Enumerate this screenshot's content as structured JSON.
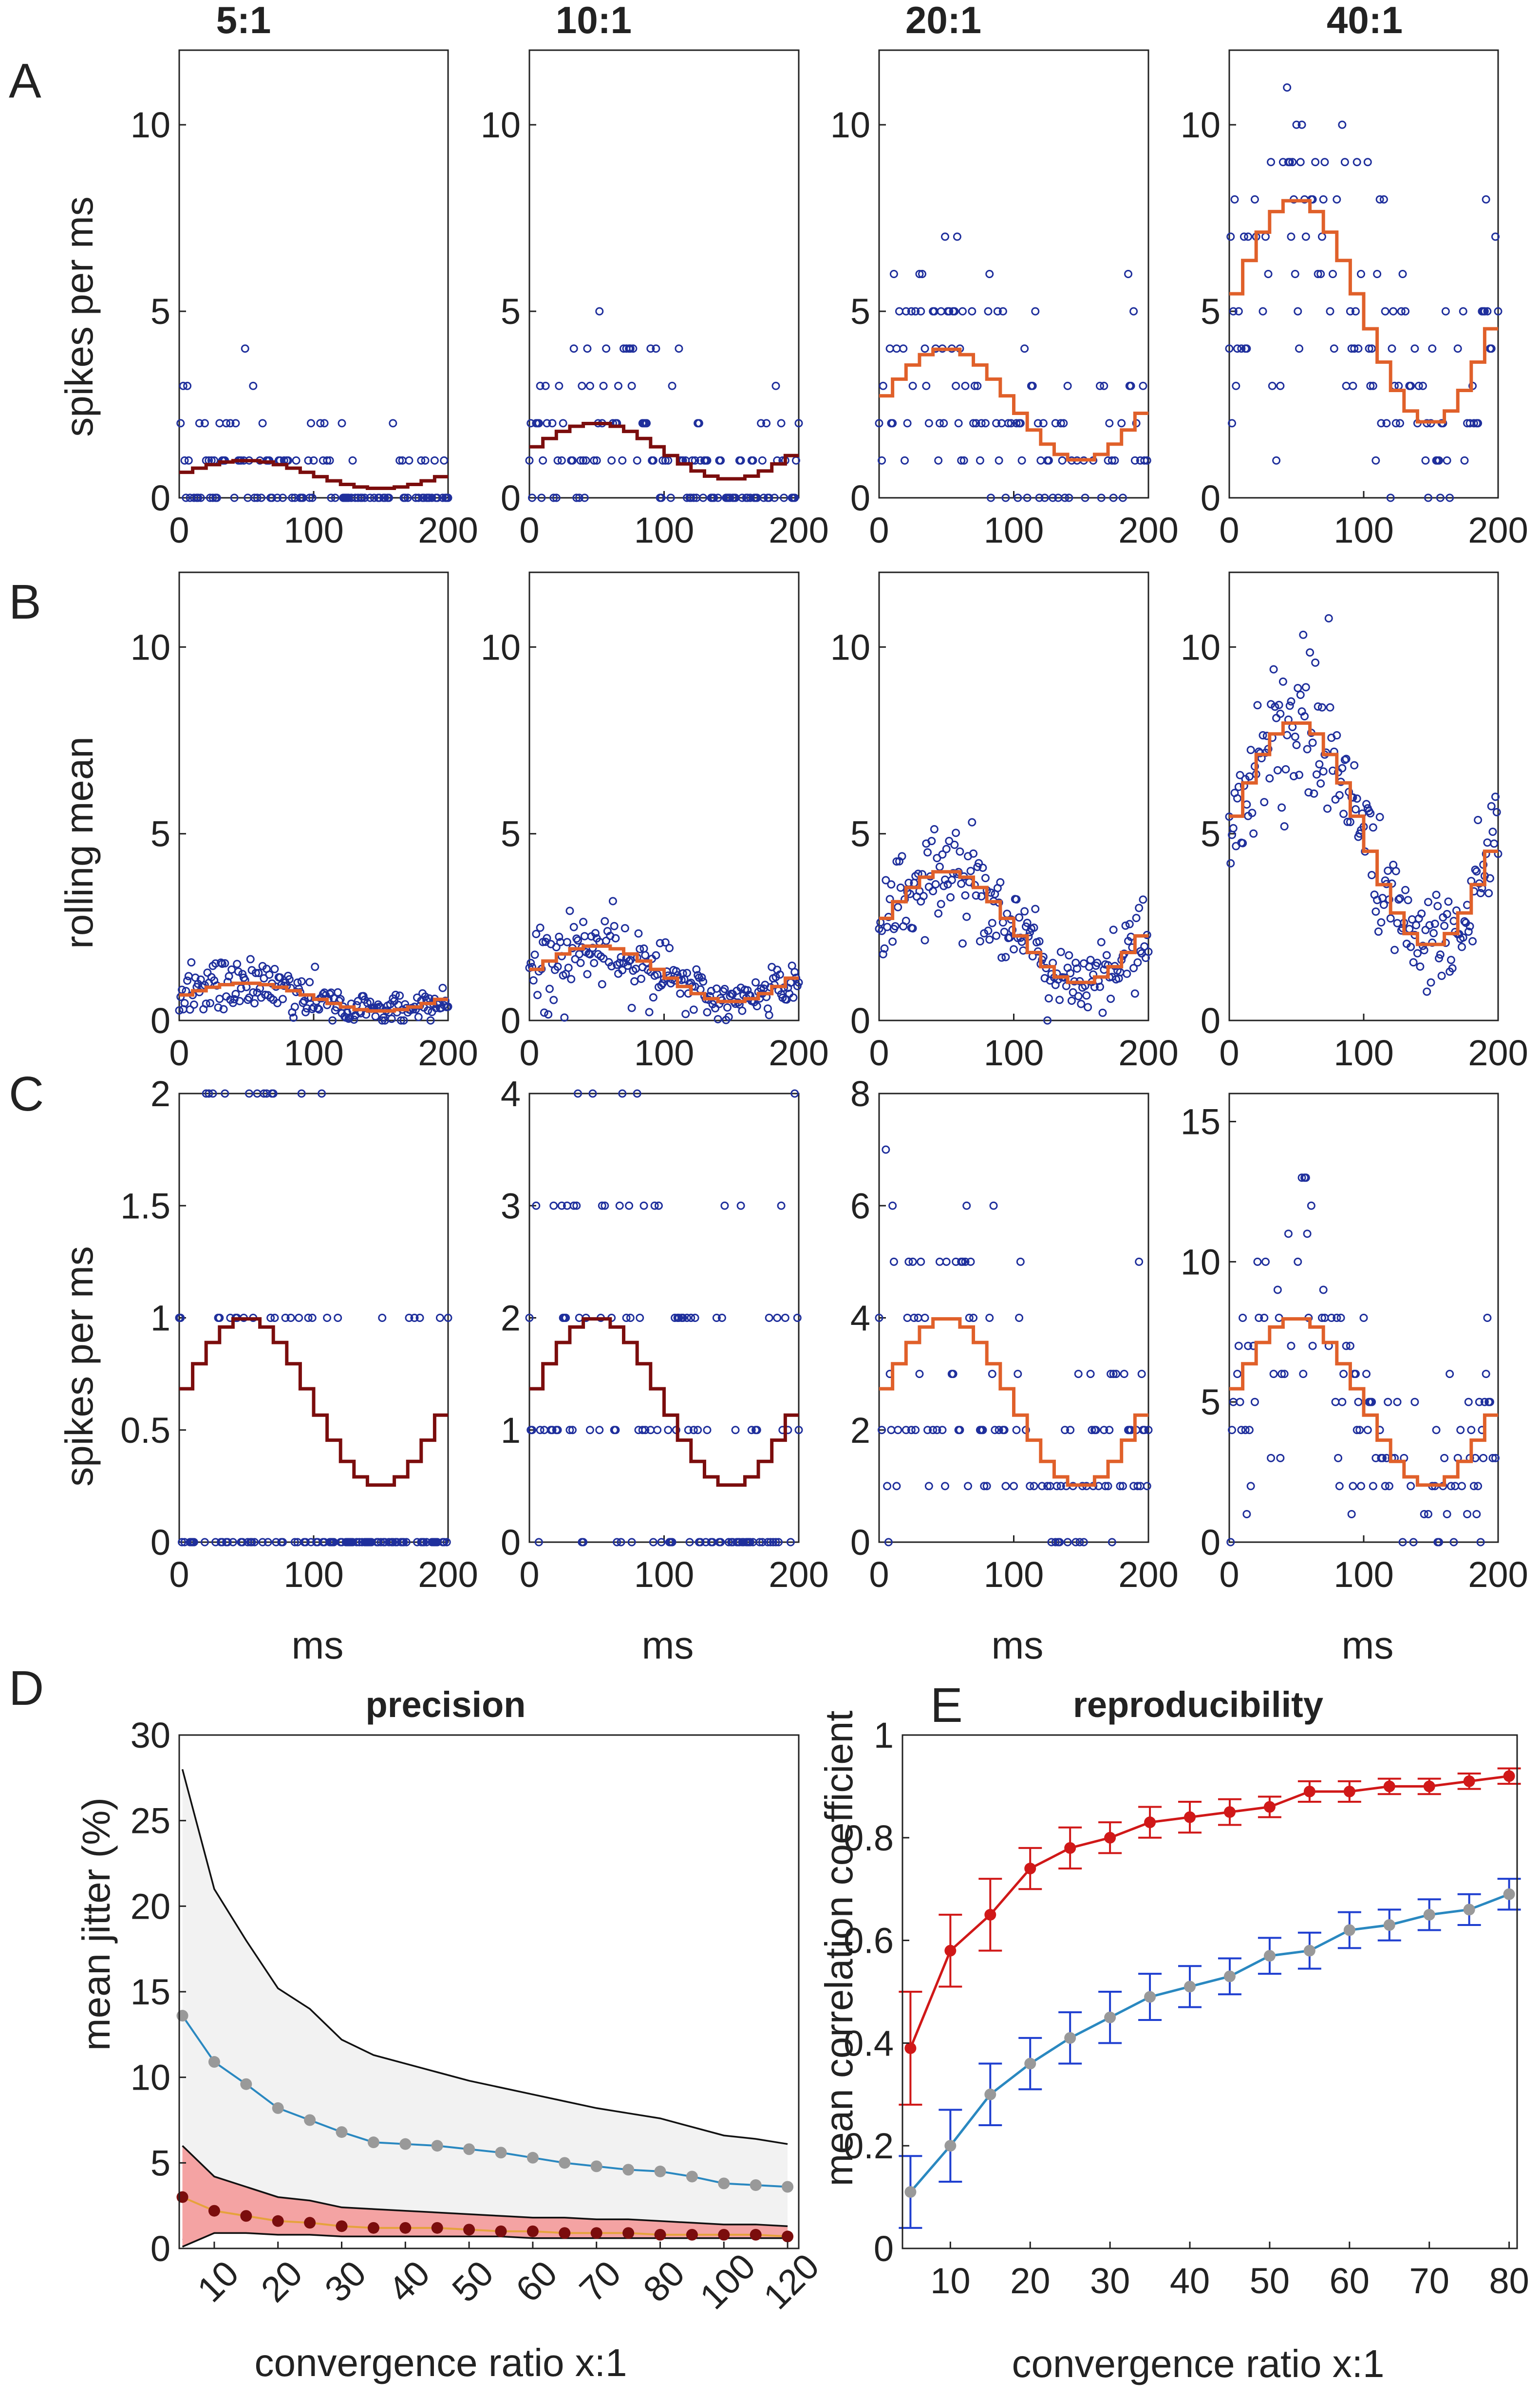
{
  "column_titles": [
    "5:1",
    "10:1",
    "20:1",
    "40:1"
  ],
  "panel_letters": [
    "A",
    "B",
    "C",
    "D",
    "E"
  ],
  "colors": {
    "dot_navy": "#1f2f9c",
    "sine_dark": "#7b0d0d",
    "sine_orange": "#e0602a",
    "red_series": "#d01818",
    "gray_point": "#999999",
    "blue_line": "#2a88c0",
    "blue_error": "#1f3fd0",
    "gray_band": "#f2f2f2",
    "red_band": "#f4a3a3",
    "yellow_line": "#e6a23c",
    "axis": "#222222"
  },
  "chart_data": [
    {
      "id": "row-A",
      "type": "scatter",
      "row_label": "A",
      "ylabel": "spikes per ms",
      "xlabel": "",
      "x_ticks": [
        "0",
        "100",
        "200"
      ],
      "x_range": [
        0,
        200
      ],
      "y_range": [
        0,
        12
      ],
      "y_ticks": [
        "0",
        "5",
        "10"
      ],
      "y_tick_values": [
        0,
        5,
        10
      ],
      "panels": [
        {
          "ratio": "5:1",
          "rate_mean": 0.625,
          "rate_amp": 0.375,
          "line": "dark",
          "points": "integer"
        },
        {
          "ratio": "10:1",
          "rate_mean": 1.25,
          "rate_amp": 0.75,
          "line": "dark",
          "points": "integer"
        },
        {
          "ratio": "20:1",
          "rate_mean": 2.5,
          "rate_amp": 1.5,
          "line": "orange",
          "points": "integer"
        },
        {
          "ratio": "40:1",
          "rate_mean": 5,
          "rate_amp": 3,
          "line": "orange",
          "points": "integer"
        }
      ]
    },
    {
      "id": "row-B",
      "type": "scatter",
      "row_label": "B",
      "ylabel": "rolling mean",
      "xlabel": "",
      "x_ticks": [
        "0",
        "100",
        "200"
      ],
      "x_range": [
        0,
        200
      ],
      "y_range": [
        0,
        12
      ],
      "y_ticks": [
        "0",
        "5",
        "10"
      ],
      "y_tick_values": [
        0,
        5,
        10
      ],
      "panels": [
        {
          "ratio": "5:1",
          "rate_mean": 0.625,
          "rate_amp": 0.375,
          "line": "orange",
          "points": "continuous"
        },
        {
          "ratio": "10:1",
          "rate_mean": 1.25,
          "rate_amp": 0.75,
          "line": "orange",
          "points": "continuous"
        },
        {
          "ratio": "20:1",
          "rate_mean": 2.5,
          "rate_amp": 1.5,
          "line": "orange",
          "points": "continuous"
        },
        {
          "ratio": "40:1",
          "rate_mean": 5,
          "rate_amp": 3,
          "line": "orange",
          "points": "continuous"
        }
      ]
    },
    {
      "id": "row-C",
      "type": "scatter",
      "row_label": "C",
      "ylabel": "spikes per ms",
      "xlabel": "ms",
      "x_ticks": [
        "0",
        "100",
        "200"
      ],
      "x_range": [
        0,
        200
      ],
      "panels": [
        {
          "ratio": "5:1",
          "rate_mean": 0.625,
          "rate_amp": 0.375,
          "line": "dark",
          "points": "integer",
          "y_range": [
            0,
            2
          ],
          "y_ticks": [
            "0",
            "0.5",
            "1",
            "1.5",
            "2"
          ],
          "y_tick_values": [
            0,
            0.5,
            1,
            1.5,
            2
          ]
        },
        {
          "ratio": "10:1",
          "rate_mean": 1.25,
          "rate_amp": 0.75,
          "line": "dark",
          "points": "integer",
          "y_range": [
            0,
            4
          ],
          "y_ticks": [
            "0",
            "1",
            "2",
            "3",
            "4"
          ],
          "y_tick_values": [
            0,
            1,
            2,
            3,
            4
          ]
        },
        {
          "ratio": "20:1",
          "rate_mean": 2.5,
          "rate_amp": 1.5,
          "line": "orange",
          "points": "integer",
          "y_range": [
            0,
            8
          ],
          "y_ticks": [
            "0",
            "2",
            "4",
            "6",
            "8"
          ],
          "y_tick_values": [
            0,
            2,
            4,
            6,
            8
          ]
        },
        {
          "ratio": "40:1",
          "rate_mean": 5,
          "rate_amp": 3,
          "line": "orange",
          "points": "integer",
          "y_range": [
            0,
            16
          ],
          "y_ticks": [
            "0",
            "5",
            "10",
            "15"
          ],
          "y_tick_values": [
            0,
            5,
            10,
            15
          ]
        }
      ]
    },
    {
      "id": "panel-D",
      "type": "line",
      "title": "precision",
      "xlabel": "convergence ratio x:1",
      "ylabel": "mean jitter (%)",
      "y_range": [
        0,
        30
      ],
      "y_ticks": [
        "0",
        "5",
        "10",
        "15",
        "20",
        "25",
        "30"
      ],
      "y_tick_values": [
        0,
        5,
        10,
        15,
        20,
        25,
        30
      ],
      "x_ticks": [
        "10",
        "20",
        "30",
        "40",
        "50",
        "60",
        "70",
        "80",
        "100",
        "120"
      ],
      "x_tick_positions": [
        2,
        4,
        6,
        8,
        10,
        12,
        14,
        16,
        18,
        20
      ],
      "x_position_range": [
        0.9,
        20.35
      ],
      "x": [
        1,
        2,
        3,
        4,
        5,
        6,
        7,
        8,
        9,
        10,
        11,
        12,
        13,
        14,
        15,
        16,
        17,
        18,
        19,
        20
      ],
      "series": [
        {
          "name": "mean jitter (gray)",
          "values": [
            13.6,
            10.9,
            9.6,
            8.2,
            7.5,
            6.8,
            6.2,
            6.1,
            6.0,
            5.8,
            5.6,
            5.3,
            5.0,
            4.8,
            4.6,
            4.5,
            4.2,
            3.8,
            3.7,
            3.6
          ]
        },
        {
          "name": "mean jitter (red)",
          "values": [
            3.0,
            2.2,
            1.9,
            1.6,
            1.5,
            1.3,
            1.2,
            1.2,
            1.2,
            1.1,
            1.0,
            1.0,
            0.9,
            0.9,
            0.9,
            0.8,
            0.8,
            0.8,
            0.8,
            0.7
          ]
        }
      ],
      "gray_band": {
        "upper": [
          28,
          21,
          18,
          15.2,
          14,
          12.2,
          11.3,
          10.8,
          10.3,
          9.8,
          9.4,
          9.0,
          8.6,
          8.2,
          7.9,
          7.6,
          7.1,
          6.6,
          6.4,
          6.1
        ],
        "lower": [
          0.5,
          0.9,
          1.0,
          1.0,
          1.0,
          1.0,
          1.0,
          1.0,
          1.0,
          1.0,
          1.0,
          1.0,
          1.0,
          1.0,
          1.0,
          1.0,
          1.0,
          1.0,
          1.0,
          1.0
        ]
      },
      "red_band": {
        "upper": [
          6.0,
          4.2,
          3.6,
          3.0,
          2.8,
          2.4,
          2.3,
          2.2,
          2.1,
          2.0,
          1.9,
          1.8,
          1.8,
          1.7,
          1.7,
          1.6,
          1.5,
          1.4,
          1.4,
          1.3
        ],
        "lower": [
          0.1,
          0.9,
          0.9,
          0.8,
          0.8,
          0.7,
          0.7,
          0.7,
          0.7,
          0.7,
          0.7,
          0.6,
          0.6,
          0.6,
          0.6,
          0.6,
          0.6,
          0.6,
          0.6,
          0.6
        ]
      }
    },
    {
      "id": "panel-E",
      "type": "line",
      "title": "reproducibility",
      "xlabel": "convergence ratio x:1",
      "ylabel": "mean correlation coefficient",
      "x_range": [
        4,
        81
      ],
      "y_range": [
        0,
        1
      ],
      "x_ticks": [
        "10",
        "20",
        "30",
        "40",
        "50",
        "60",
        "70",
        "80"
      ],
      "x_tick_values": [
        10,
        20,
        30,
        40,
        50,
        60,
        70,
        80
      ],
      "y_ticks": [
        "0",
        "0.2",
        "0.4",
        "0.6",
        "0.8",
        "1"
      ],
      "y_tick_values": [
        0,
        0.2,
        0.4,
        0.6,
        0.8,
        1
      ],
      "x": [
        5,
        10,
        15,
        20,
        25,
        30,
        35,
        40,
        45,
        50,
        55,
        60,
        65,
        70,
        75,
        80
      ],
      "series": [
        {
          "name": "red",
          "values": [
            0.39,
            0.58,
            0.65,
            0.74,
            0.78,
            0.8,
            0.83,
            0.84,
            0.85,
            0.86,
            0.89,
            0.89,
            0.9,
            0.9,
            0.91,
            0.92
          ],
          "errors": [
            0.11,
            0.07,
            0.07,
            0.04,
            0.04,
            0.03,
            0.03,
            0.03,
            0.025,
            0.02,
            0.02,
            0.02,
            0.015,
            0.015,
            0.015,
            0.015
          ]
        },
        {
          "name": "gray-blue",
          "values": [
            0.11,
            0.2,
            0.3,
            0.36,
            0.41,
            0.45,
            0.49,
            0.51,
            0.53,
            0.57,
            0.58,
            0.62,
            0.63,
            0.65,
            0.66,
            0.69
          ],
          "errors": [
            0.07,
            0.07,
            0.06,
            0.05,
            0.05,
            0.05,
            0.045,
            0.04,
            0.035,
            0.035,
            0.035,
            0.035,
            0.03,
            0.03,
            0.03,
            0.03
          ]
        }
      ]
    }
  ]
}
